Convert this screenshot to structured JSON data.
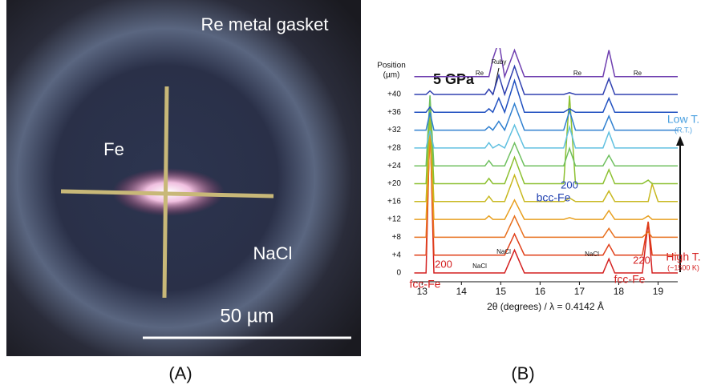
{
  "panels": [
    {
      "label": "(A)",
      "labels": [
        "Re metal gasket",
        "Fe",
        "NaCl"
      ],
      "scale_bar": "50 µm"
    },
    {
      "label": "(B)"
    }
  ],
  "chart_data": {
    "type": "line",
    "title": "5 GPa",
    "x_label": "2θ (degrees) / λ = 0.4142 Å",
    "position_label": [
      "Position",
      "(µm)"
    ],
    "x": [
      12.8,
      13.1,
      13.2,
      13.3,
      13.5,
      14.6,
      14.7,
      14.8,
      14.95,
      15.1,
      15.35,
      15.6,
      16.6,
      16.75,
      16.9,
      17.6,
      17.75,
      17.9,
      18.6,
      18.75,
      18.85,
      19.0,
      19.5
    ],
    "xlim": [
      12.75,
      19.5
    ],
    "xticks": [
      13,
      14,
      15,
      16,
      17,
      18,
      19
    ],
    "series": [
      {
        "name": "0",
        "color": "#d42020",
        "values": [
          0,
          0,
          8.8,
          0,
          0,
          0,
          0,
          0,
          0,
          0,
          1.3,
          0,
          0,
          0,
          0,
          0,
          0.8,
          0,
          0,
          2.9,
          0,
          0,
          0
        ]
      },
      {
        "name": "+4",
        "color": "#e0401a",
        "values": [
          0,
          0,
          7.5,
          0,
          0,
          0,
          0,
          0,
          0,
          0,
          1.2,
          0,
          0,
          0,
          0,
          0,
          0.6,
          0,
          0,
          1.9,
          0,
          0,
          0
        ]
      },
      {
        "name": "+8",
        "color": "#e8701e",
        "values": [
          0,
          0,
          6,
          0,
          0,
          0,
          0,
          0,
          0,
          0,
          1.2,
          0,
          0,
          0,
          0,
          0,
          0.5,
          0,
          0,
          0.3,
          0,
          0,
          0
        ]
      },
      {
        "name": "+12",
        "color": "#e8a020",
        "values": [
          0,
          0,
          5.5,
          0,
          0,
          0,
          0.2,
          0,
          0,
          0,
          1.1,
          0,
          0,
          0.1,
          0,
          0,
          0.5,
          0,
          0,
          0.2,
          0,
          0,
          0
        ]
      },
      {
        "name": "+16",
        "color": "#c8b820",
        "values": [
          0,
          0,
          5,
          0,
          0,
          0,
          0.3,
          0,
          0,
          0,
          1.5,
          0,
          0,
          0.2,
          0,
          0,
          0.6,
          0,
          0,
          0,
          1,
          0,
          0
        ]
      },
      {
        "name": "+20",
        "color": "#8cc030",
        "values": [
          0,
          0,
          4.5,
          0,
          0,
          0,
          0.3,
          0,
          0,
          0,
          1.5,
          0,
          0,
          5,
          0,
          0,
          0.8,
          0,
          0,
          0.2,
          0,
          0,
          0
        ]
      },
      {
        "name": "+24",
        "color": "#70c060",
        "values": [
          0,
          0,
          4,
          0,
          0,
          0,
          0.3,
          0,
          0,
          0,
          1.3,
          0,
          0,
          1,
          0,
          0,
          0.6,
          0,
          0,
          0,
          0,
          0,
          0
        ]
      },
      {
        "name": "+28",
        "color": "#60c0e0",
        "values": [
          0,
          0,
          1,
          0,
          0,
          0,
          0.3,
          0,
          0.2,
          0,
          1.3,
          0,
          0,
          1.2,
          0,
          0,
          0.9,
          0,
          0,
          0,
          0,
          0,
          0
        ]
      },
      {
        "name": "+32",
        "color": "#3080d0",
        "values": [
          0,
          0,
          1,
          0,
          0,
          0,
          0.2,
          0,
          0.5,
          0,
          1.5,
          0,
          0,
          1.1,
          0,
          0,
          0.8,
          0,
          0,
          0,
          0,
          0,
          0
        ]
      },
      {
        "name": "+36",
        "color": "#2050c0",
        "values": [
          0,
          0,
          0.3,
          0,
          0,
          0,
          0.2,
          0,
          0.8,
          0,
          1.8,
          0,
          0,
          0.2,
          0,
          0,
          0.8,
          0,
          0,
          0,
          0,
          0,
          0
        ]
      },
      {
        "name": "+40",
        "color": "#3040b0",
        "values": [
          0,
          0,
          0.2,
          0,
          0,
          0,
          0.3,
          0,
          1.1,
          0,
          1.6,
          0,
          0,
          0.1,
          0,
          0,
          0.9,
          0,
          0,
          0,
          0,
          0,
          0
        ]
      },
      {
        "name": null,
        "color": "#7040b0",
        "values": [
          0,
          0,
          0,
          0,
          0,
          0,
          0,
          1,
          2,
          0,
          1.5,
          0,
          0,
          0,
          0,
          0,
          1.5,
          0,
          0,
          0,
          0,
          0,
          0
        ]
      }
    ],
    "annotations": [
      "Ruby",
      "Re",
      "Re",
      "Re",
      "NaCl",
      "NaCl",
      "NaCl",
      "200",
      "fcc-Fe",
      "200",
      "bcc-Fe",
      "220",
      "fcc-Fe"
    ],
    "low_label": [
      "Low T.",
      "(R.T.)"
    ],
    "high_label": [
      "High T.",
      "(~1500 K)"
    ]
  }
}
